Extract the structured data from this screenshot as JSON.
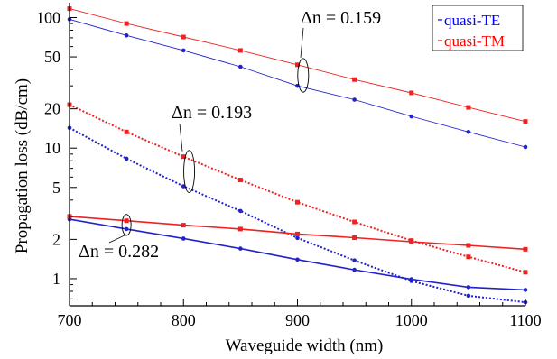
{
  "chart_data": {
    "type": "line",
    "xlabel": "Waveguide width (nm)",
    "ylabel": "Propagation loss (dB/cm)",
    "xlim": [
      700,
      1100
    ],
    "ylim": [
      0.62,
      130
    ],
    "y_scale": "log",
    "x_ticks": [
      700,
      800,
      900,
      1000,
      1100
    ],
    "y_ticks": [
      1,
      2,
      5,
      10,
      20,
      50,
      100
    ],
    "y_tick_labels": [
      "1",
      "2",
      "5",
      "10",
      "20",
      "50",
      "100"
    ],
    "grid": false,
    "legend_position": "top-right",
    "legend": [
      {
        "label": "quasi-TE",
        "color": "#0000ff"
      },
      {
        "label": "quasi-TM",
        "color": "#ff0000"
      }
    ],
    "series": [
      {
        "polarization": "quasi-TE",
        "dn": "0.159",
        "style": "solid",
        "color": "#2222cc",
        "x": [
          700,
          750,
          800,
          850,
          900,
          950,
          1000,
          1050,
          1100
        ],
        "y": [
          97,
          73,
          56,
          42,
          30,
          23.5,
          17.5,
          13.3,
          10.2
        ]
      },
      {
        "polarization": "quasi-TM",
        "dn": "0.159",
        "style": "solid",
        "color": "#ee2222",
        "x": [
          700,
          750,
          800,
          850,
          900,
          950,
          1000,
          1050,
          1100
        ],
        "y": [
          117,
          90,
          71,
          56,
          43.5,
          33.5,
          26.5,
          20.5,
          16
        ]
      },
      {
        "polarization": "quasi-TE",
        "dn": "0.193",
        "style": "dotted",
        "color": "#2222cc",
        "x": [
          700,
          750,
          800,
          850,
          900,
          950,
          1000,
          1050,
          1100
        ],
        "y": [
          14.3,
          8.3,
          5.1,
          3.3,
          2.05,
          1.38,
          0.96,
          0.74,
          0.66
        ]
      },
      {
        "polarization": "quasi-TM",
        "dn": "0.193",
        "style": "dotted",
        "color": "#ee2222",
        "x": [
          700,
          750,
          800,
          850,
          900,
          950,
          1000,
          1050,
          1100
        ],
        "y": [
          21.5,
          13.3,
          8.6,
          5.7,
          3.85,
          2.72,
          1.96,
          1.47,
          1.12
        ]
      },
      {
        "polarization": "quasi-TE",
        "dn": "0.282",
        "style": "solid-thick",
        "color": "#2222cc",
        "x": [
          700,
          750,
          800,
          850,
          900,
          950,
          1000,
          1050,
          1100
        ],
        "y": [
          2.85,
          2.4,
          2.03,
          1.7,
          1.4,
          1.17,
          0.99,
          0.86,
          0.82
        ]
      },
      {
        "polarization": "quasi-TM",
        "dn": "0.282",
        "style": "solid-thick",
        "color": "#ee2222",
        "x": [
          700,
          750,
          800,
          850,
          900,
          950,
          1000,
          1050,
          1100
        ],
        "y": [
          3.0,
          2.78,
          2.57,
          2.4,
          2.2,
          2.06,
          1.92,
          1.8,
          1.68
        ]
      }
    ],
    "annotations": [
      {
        "text": "Δn = 0.159",
        "target_x": 905,
        "target_y": [
          30,
          43.5
        ]
      },
      {
        "text": "Δn = 0.193",
        "target_x": 805,
        "target_y": [
          5.1,
          8.6
        ]
      },
      {
        "text": "Δn = 0.282",
        "target_x": 750,
        "target_y": [
          2.4,
          2.78
        ]
      }
    ]
  }
}
